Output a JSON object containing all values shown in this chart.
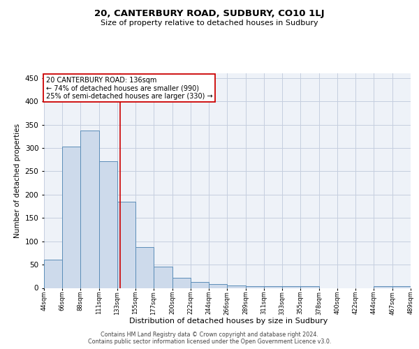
{
  "title": "20, CANTERBURY ROAD, SUDBURY, CO10 1LJ",
  "subtitle": "Size of property relative to detached houses in Sudbury",
  "xlabel": "Distribution of detached houses by size in Sudbury",
  "ylabel": "Number of detached properties",
  "footer_line1": "Contains HM Land Registry data © Crown copyright and database right 2024.",
  "footer_line2": "Contains public sector information licensed under the Open Government Licence v3.0.",
  "bar_left_edges": [
    44,
    66,
    88,
    111,
    133,
    155,
    177,
    200,
    222,
    244,
    266,
    289,
    311,
    333,
    355,
    378,
    400,
    422,
    444,
    467
  ],
  "bar_heights": [
    60,
    303,
    338,
    272,
    185,
    88,
    45,
    22,
    12,
    8,
    5,
    3,
    4,
    4,
    3,
    0,
    0,
    0,
    3,
    4
  ],
  "bar_widths": [
    22,
    22,
    23,
    22,
    22,
    22,
    23,
    22,
    22,
    22,
    23,
    22,
    22,
    22,
    23,
    22,
    22,
    22,
    23,
    22
  ],
  "bar_face_color": "#cddaeb",
  "bar_edge_color": "#5b8db8",
  "grid_color": "#c5cedf",
  "background_color": "#eef2f8",
  "red_line_x": 136,
  "annotation_text_line1": "20 CANTERBURY ROAD: 136sqm",
  "annotation_text_line2": "← 74% of detached houses are smaller (990)",
  "annotation_text_line3": "25% of semi-detached houses are larger (330) →",
  "annotation_box_color": "#cc0000",
  "ylim": [
    0,
    460
  ],
  "xlim": [
    44,
    489
  ],
  "yticks": [
    0,
    50,
    100,
    150,
    200,
    250,
    300,
    350,
    400,
    450
  ],
  "tick_labels": [
    "44sqm",
    "66sqm",
    "88sqm",
    "111sqm",
    "133sqm",
    "155sqm",
    "177sqm",
    "200sqm",
    "222sqm",
    "244sqm",
    "266sqm",
    "289sqm",
    "311sqm",
    "333sqm",
    "355sqm",
    "378sqm",
    "400sqm",
    "422sqm",
    "444sqm",
    "467sqm",
    "489sqm"
  ],
  "tick_positions": [
    44,
    66,
    88,
    111,
    133,
    155,
    177,
    200,
    222,
    244,
    266,
    289,
    311,
    333,
    355,
    378,
    400,
    422,
    444,
    467,
    489
  ]
}
